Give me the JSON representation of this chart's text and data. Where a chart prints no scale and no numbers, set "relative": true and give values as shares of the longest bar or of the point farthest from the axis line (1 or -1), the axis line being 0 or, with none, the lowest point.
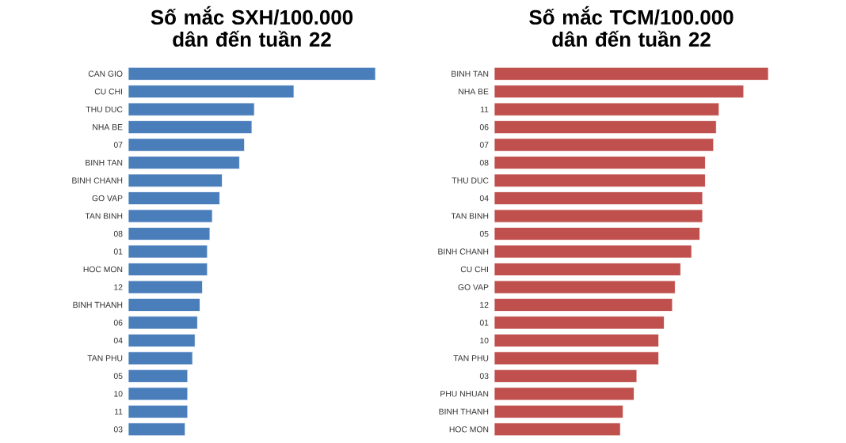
{
  "chart_data": [
    {
      "type": "bar",
      "orientation": "horizontal",
      "relative": true,
      "title": "Số mắc SXH/100.000 dân đến tuần 22",
      "color": "#4a7ebb",
      "categories": [
        "CAN GIO",
        "CU CHI",
        "THU DUC",
        "NHA BE",
        "07",
        "BINH TAN",
        "BINH CHANH",
        "GO VAP",
        "TAN BINH",
        "08",
        "01",
        "HOC MON",
        "12",
        "BINH THANH",
        "06",
        "04",
        "TAN PHU",
        "05",
        "10",
        "11",
        "03"
      ],
      "values": [
        1,
        0.67,
        0.51,
        0.5,
        0.47,
        0.45,
        0.38,
        0.37,
        0.34,
        0.33,
        0.32,
        0.32,
        0.3,
        0.29,
        0.28,
        0.27,
        0.26,
        0.24,
        0.24,
        0.24,
        0.23
      ]
    },
    {
      "type": "bar",
      "orientation": "horizontal",
      "relative": true,
      "title": "Số mắc TCM/100.000 dân đến tuần 22",
      "color": "#c0504d",
      "categories": [
        "BINH TAN",
        "NHA BE",
        "11",
        "06",
        "07",
        "08",
        "THU DUC",
        "04",
        "TAN BINH",
        "05",
        "BINH CHANH",
        "CU CHI",
        "GO VAP",
        "12",
        "01",
        "10",
        "TAN PHU",
        "03",
        "PHU NHUAN",
        "BINH THANH",
        "HOC MON"
      ],
      "values": [
        1,
        0.91,
        0.82,
        0.81,
        0.8,
        0.77,
        0.77,
        0.76,
        0.76,
        0.75,
        0.72,
        0.68,
        0.66,
        0.65,
        0.62,
        0.6,
        0.6,
        0.52,
        0.51,
        0.47,
        0.46
      ]
    }
  ]
}
